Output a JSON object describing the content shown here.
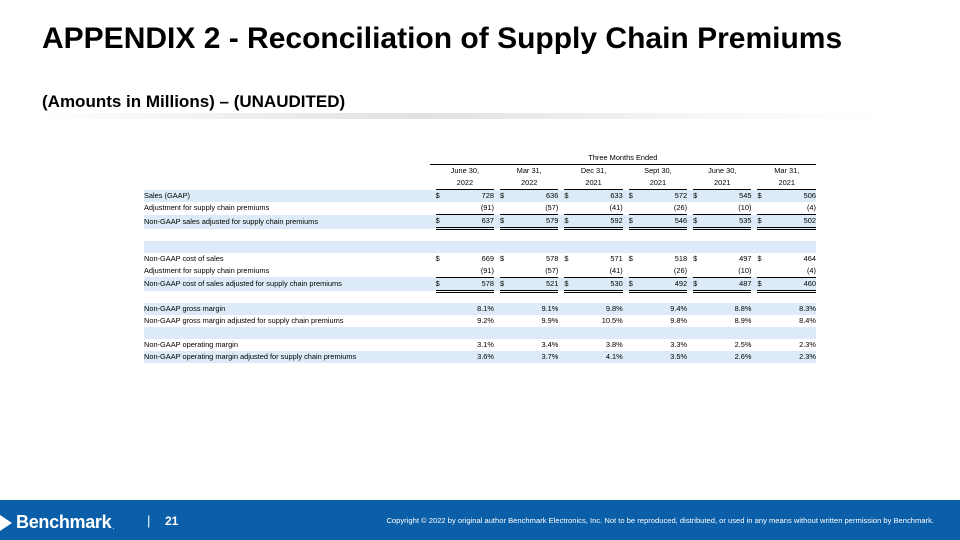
{
  "slide": {
    "title": "APPENDIX 2 - Reconciliation of Supply Chain Premiums",
    "subtitle": "(Amounts in Millions) – (UNAUDITED)",
    "page_number": "21",
    "divider": "|",
    "logo_text": "Benchmark",
    "copyright": "Copyright © 2022 by original author Benchmark Electronics, Inc. Not to be reproduced, distributed, or used in any means without written permission by Benchmark."
  },
  "table": {
    "group_header": "Three Months Ended",
    "columns": [
      {
        "top": "June 30,",
        "bottom": "2022"
      },
      {
        "top": "Mar 31,",
        "bottom": "2022"
      },
      {
        "top": "Dec 31,",
        "bottom": "2021"
      },
      {
        "top": "Sept 30,",
        "bottom": "2021"
      },
      {
        "top": "June 30,",
        "bottom": "2021"
      },
      {
        "top": "Mar 31,",
        "bottom": "2021"
      }
    ],
    "currency_symbol": "$",
    "rows": [
      {
        "label": "Sales (GAAP)",
        "values": [
          "728",
          "636",
          "633",
          "572",
          "545",
          "506"
        ],
        "currency": true,
        "shade": true,
        "underline": ""
      },
      {
        "label": "Adjustment for supply chain premiums",
        "values": [
          "(91)",
          "(57)",
          "(41)",
          "(26)",
          "(10)",
          "(4)"
        ],
        "currency": false,
        "shade": false,
        "underline": "single"
      },
      {
        "label": "Non-GAAP sales adjusted for supply chain premiums",
        "values": [
          "637",
          "579",
          "592",
          "546",
          "535",
          "502"
        ],
        "currency": true,
        "shade": true,
        "underline": "double"
      },
      {
        "blank": true,
        "shade": false
      },
      {
        "blank": true,
        "shade": true
      },
      {
        "label": "Non-GAAP cost of sales",
        "values": [
          "669",
          "578",
          "571",
          "518",
          "497",
          "464"
        ],
        "currency": true,
        "shade": false,
        "underline": ""
      },
      {
        "label": "Adjustment for supply chain premiums",
        "values": [
          "(91)",
          "(57)",
          "(41)",
          "(26)",
          "(10)",
          "(4)"
        ],
        "currency": false,
        "shade": false,
        "underline": "single"
      },
      {
        "label": "Non-GAAP cost of sales adjusted for supply chain premiums",
        "values": [
          "578",
          "521",
          "530",
          "492",
          "487",
          "460"
        ],
        "currency": true,
        "shade": true,
        "underline": "double"
      },
      {
        "blank": true,
        "shade": false
      },
      {
        "label": "Non-GAAP gross margin",
        "values": [
          "8.1%",
          "9.1%",
          "9.8%",
          "9.4%",
          "8.8%",
          "8.3%"
        ],
        "currency": false,
        "shade": true,
        "underline": ""
      },
      {
        "label": "Non-GAAP gross margin adjusted for supply chain premiums",
        "values": [
          "9.2%",
          "9.9%",
          "10.5%",
          "9.8%",
          "8.9%",
          "8.4%"
        ],
        "currency": false,
        "shade": false,
        "underline": ""
      },
      {
        "blank": true,
        "shade": true
      },
      {
        "label": "Non-GAAP operating margin",
        "values": [
          "3.1%",
          "3.4%",
          "3.8%",
          "3.3%",
          "2.5%",
          "2.3%"
        ],
        "currency": false,
        "shade": false,
        "underline": ""
      },
      {
        "label": "Non-GAAP operating margin adjusted for supply chain premiums",
        "values": [
          "3.6%",
          "3.7%",
          "4.1%",
          "3.5%",
          "2.6%",
          "2.3%"
        ],
        "currency": false,
        "shade": true,
        "underline": ""
      }
    ]
  },
  "colors": {
    "footer_bg": "#0b5ea8",
    "row_shade": "#dcebf7"
  }
}
